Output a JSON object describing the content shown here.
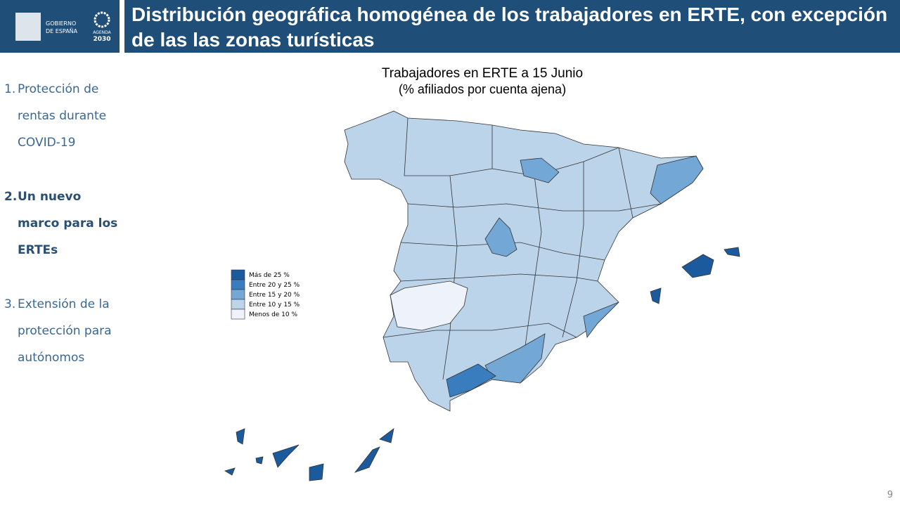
{
  "header": {
    "title": "Distribución geográfica homogénea de los trabajadores en ERTE, con excepción de las las zonas turísticas",
    "logo": {
      "gov_line1": "GOBIERNO",
      "gov_line2": "DE ESPAÑA",
      "agenda": "AGENDA",
      "year": "2030"
    }
  },
  "sidebar": {
    "items": [
      {
        "number": "1.",
        "text": "Protección de rentas durante COVID-19",
        "bold": false
      },
      {
        "number": "2.",
        "text": "Un nuevo marco para los ERTEs",
        "bold": true
      },
      {
        "number": "3.",
        "text": "Extensión de la protección para autónomos",
        "bold": false
      }
    ]
  },
  "map": {
    "title_line1": "Trabajadores en ERTE a 15 Junio",
    "title_line2": "(% afiliados por cuenta ajena)",
    "legend": [
      {
        "label": "Más de 25 %",
        "color": "#1c5a9e"
      },
      {
        "label": "Entre 20 y 25 %",
        "color": "#3a7dbf"
      },
      {
        "label": "Entre 15 y 20 %",
        "color": "#72a7d6"
      },
      {
        "label": "Entre 10 y 15 %",
        "color": "#bcd4ea"
      },
      {
        "label": "Menos de 10 %",
        "color": "#eef3fb"
      }
    ]
  },
  "page_number": "9"
}
